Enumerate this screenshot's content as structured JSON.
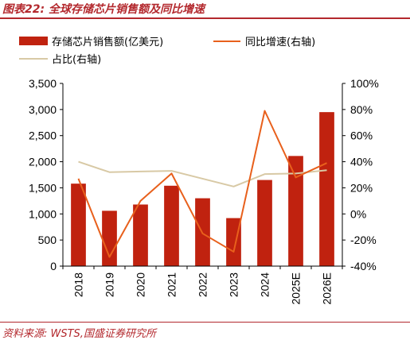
{
  "header": {
    "title": "图表22:  全球存储芯片销售额及同比增速"
  },
  "footer": {
    "source": "资料来源:  WSTS,国盛证券研究所"
  },
  "colors": {
    "bar": "#c0220f",
    "yoy": "#e8601c",
    "share": "#d8c9a5",
    "accent": "#b3282d"
  },
  "chart_data": {
    "type": "bar",
    "categories": [
      "2018",
      "2019",
      "2020",
      "2021",
      "2022",
      "2023",
      "2024",
      "2025E",
      "2026E"
    ],
    "series": [
      {
        "name": "存储芯片销售额(亿美元)",
        "type": "bar",
        "axis": "left",
        "values": [
          1580,
          1060,
          1180,
          1540,
          1300,
          920,
          1650,
          2110,
          2950
        ]
      },
      {
        "name": "同比增速(右轴)",
        "type": "line",
        "axis": "right",
        "unit": "%",
        "values": [
          27,
          -33,
          10,
          31,
          -15,
          -29,
          79,
          28,
          39
        ]
      },
      {
        "name": "占比(右轴)",
        "type": "line",
        "axis": "right",
        "unit": "%",
        "values": [
          40,
          32,
          32.5,
          33,
          27,
          21,
          30.5,
          31,
          33.5
        ]
      }
    ],
    "ylim": [
      0,
      3500
    ],
    "y2lim": [
      -40,
      100
    ],
    "yticks": [
      "0",
      "500",
      "1,000",
      "1,500",
      "2,000",
      "2,500",
      "3,000",
      "3,500"
    ],
    "y2ticks": [
      "-40%",
      "-20%",
      "0%",
      "20%",
      "40%",
      "60%",
      "80%",
      "100%"
    ],
    "legend_position": "top",
    "grid": false
  }
}
